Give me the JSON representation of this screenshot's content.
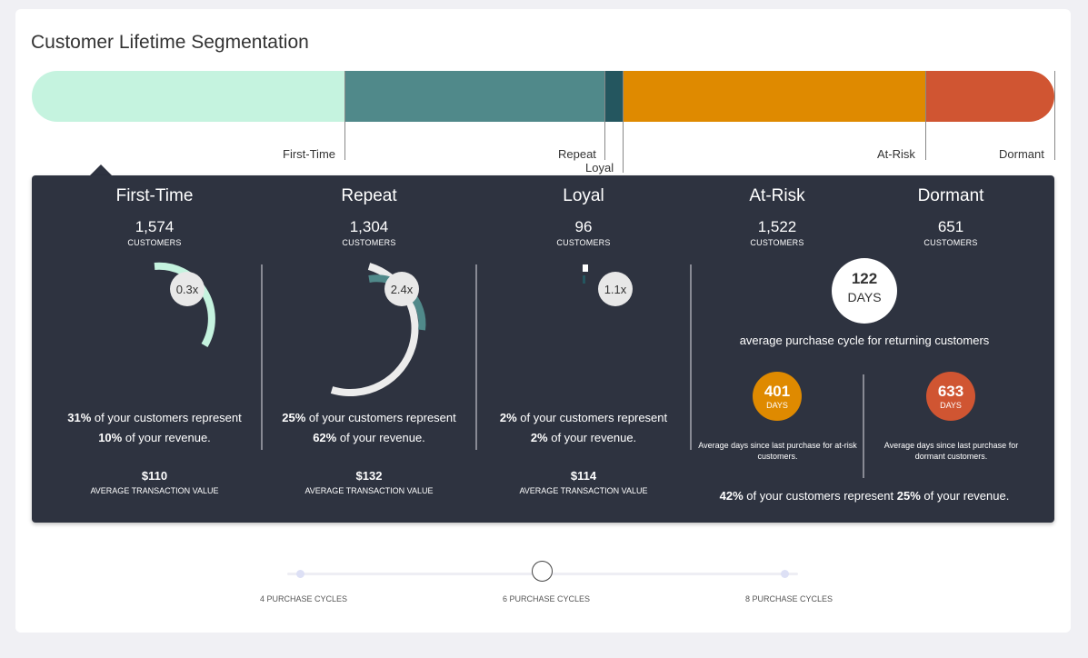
{
  "title": "Customer Lifetime Segmentation",
  "colors": {
    "first_time": "#c5f3df",
    "repeat": "#50898a",
    "loyal": "#24565f",
    "at_risk": "#df8a00",
    "dormant": "#d05532",
    "panel": "#2e3340"
  },
  "bar_labels": {
    "first_time": "First-Time",
    "repeat": "Repeat",
    "loyal": "Loyal",
    "at_risk": "At-Risk",
    "dormant": "Dormant"
  },
  "segments": [
    {
      "name": "First-Time",
      "count": "1,574",
      "count_label": "CUSTOMERS",
      "multiplier": "0.3x",
      "customers_pct": "31%",
      "desc_mid": " of your customers represent",
      "revenue_pct": "10%",
      "desc_end": " of your revenue.",
      "aov": "$110",
      "aov_label": "AVERAGE TRANSACTION VALUE"
    },
    {
      "name": "Repeat",
      "count": "1,304",
      "count_label": "CUSTOMERS",
      "multiplier": "2.4x",
      "customers_pct": "25%",
      "desc_mid": " of your customers represent",
      "revenue_pct": "62%",
      "desc_end": " of your revenue.",
      "aov": "$132",
      "aov_label": "AVERAGE TRANSACTION VALUE"
    },
    {
      "name": "Loyal",
      "count": "96",
      "count_label": "CUSTOMERS",
      "multiplier": "1.1x",
      "customers_pct": "2%",
      "desc_mid": " of your customers represent",
      "revenue_pct": "2%",
      "desc_end": " of your revenue.",
      "aov": "$114",
      "aov_label": "AVERAGE TRANSACTION VALUE"
    },
    {
      "name": "At-Risk",
      "count": "1,522",
      "count_label": "CUSTOMERS"
    },
    {
      "name": "Dormant",
      "count": "651",
      "count_label": "CUSTOMERS"
    }
  ],
  "returning": {
    "days": "122",
    "days_unit": "DAYS",
    "caption": "average purchase cycle for returning customers",
    "at_risk_days": "401",
    "at_risk_unit": "DAYS",
    "at_risk_caption": "Average days since last purchase for at-risk customers.",
    "dormant_days": "633",
    "dormant_unit": "DAYS",
    "dormant_caption": "Average days since last purchase for dormant customers.",
    "customers_pct": "42%",
    "desc_mid": " of your customers represent ",
    "revenue_pct": "25%",
    "desc_end": " of your revenue."
  },
  "slider": {
    "options": [
      "4 PURCHASE CYCLES",
      "6 PURCHASE CYCLES",
      "8 PURCHASE CYCLES"
    ],
    "selected": "6 PURCHASE CYCLES"
  }
}
